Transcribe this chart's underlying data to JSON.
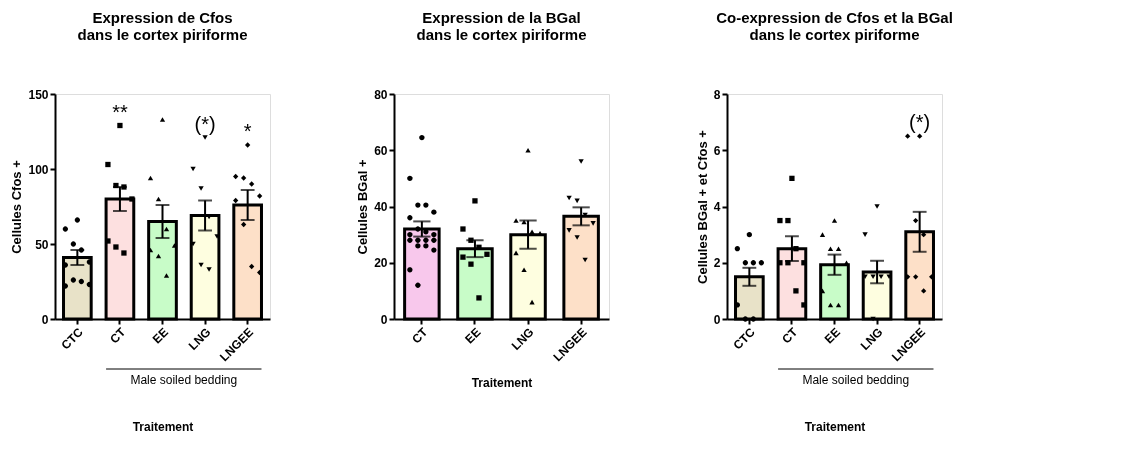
{
  "chart_data": [
    {
      "type": "bar",
      "title": "Expression de Cfos\ndans le cortex piriforme",
      "xlabel": "Traitement",
      "ylabel": "Cellules Cfos +",
      "categories": [
        "CTC",
        "CT",
        "EE",
        "LNG",
        "LNGEE"
      ],
      "ylim": [
        0,
        150
      ],
      "yticks": [
        0,
        50,
        100,
        150
      ],
      "grid": false,
      "legend": false,
      "series": [
        {
          "type": "bar",
          "values": [
            41,
            80,
            65,
            69,
            76
          ],
          "colors": [
            "#e8e2c8",
            "#fde0e0",
            "#c8fcc8",
            "#fefee0",
            "#fde0c8"
          ],
          "errors": [
            5,
            8,
            11,
            10,
            10
          ]
        },
        {
          "type": "scatter",
          "x": [
            "CTC",
            "CTC",
            "CTC",
            "CTC",
            "CTC",
            "CTC",
            "CTC",
            "CTC",
            "CTC",
            "CTC"
          ],
          "values": [
            66,
            60,
            50,
            46,
            38,
            36,
            26,
            25,
            23,
            22
          ],
          "marker": "circle",
          "color": "#000000"
        },
        {
          "type": "scatter",
          "x": [
            "CT",
            "CT",
            "CT",
            "CT",
            "CT",
            "CT",
            "CT",
            "CT"
          ],
          "values": [
            129,
            103,
            89,
            88,
            80,
            52,
            48,
            44
          ],
          "marker": "square",
          "color": "#000000"
        },
        {
          "type": "scatter",
          "x": [
            "EE",
            "EE",
            "EE",
            "EE",
            "EE",
            "EE",
            "EE",
            "EE"
          ],
          "values": [
            133,
            94,
            80,
            60,
            49,
            46,
            42,
            29
          ],
          "marker": "triangle",
          "color": "#000000"
        },
        {
          "type": "scatter",
          "x": [
            "LNG",
            "LNG",
            "LNG",
            "LNG",
            "LNG",
            "LNG",
            "LNG",
            "LNG"
          ],
          "values": [
            121,
            100,
            87,
            68,
            55,
            50,
            36,
            33
          ],
          "marker": "triangle-down",
          "color": "#000000"
        },
        {
          "type": "scatter",
          "x": [
            "LNGEE",
            "LNGEE",
            "LNGEE",
            "LNGEE",
            "LNGEE",
            "LNGEE",
            "LNGEE",
            "LNGEE",
            "LNGEE"
          ],
          "values": [
            116,
            95,
            94,
            90,
            82,
            79,
            63,
            35,
            31
          ],
          "marker": "diamond",
          "color": "#000000"
        }
      ],
      "annotations": [
        {
          "text": "**",
          "x": "CT",
          "y": 129
        },
        {
          "text": "(*)",
          "x": "LNG",
          "y": 121
        },
        {
          "text": "*",
          "x": "LNGEE",
          "y": 116
        },
        "Male soiled bedding"
      ]
    },
    {
      "type": "bar",
      "title": "Expression de la BGal\ndans le cortex piriforme",
      "xlabel": "Traitement",
      "ylabel": "Cellules BGal +",
      "categories": [
        "CT",
        "EE",
        "LNG",
        "LNGEE"
      ],
      "ylim": [
        0,
        80
      ],
      "yticks": [
        0,
        20,
        40,
        60,
        80
      ],
      "grid": false,
      "legend": false,
      "series": [
        {
          "type": "bar",
          "values": [
            32,
            25,
            30,
            36.5
          ],
          "colors": [
            "#f8c8ec",
            "#c8fcc8",
            "#fefee0",
            "#fde0c8"
          ],
          "errors": [
            2.7,
            3,
            5,
            3.2
          ]
        },
        {
          "type": "scatter",
          "x": [
            "CT",
            "CT",
            "CT",
            "CT",
            "CT",
            "CT",
            "CT",
            "CT",
            "CT",
            "CT",
            "CT",
            "CT",
            "CT",
            "CT",
            "CT",
            "CT",
            "CT",
            "CT",
            "CT"
          ],
          "values": [
            64.5,
            50,
            40.5,
            40.5,
            38,
            36,
            32,
            31,
            30,
            30,
            28,
            28,
            28,
            28,
            26,
            26,
            24.5,
            17.5,
            12
          ],
          "marker": "circle",
          "color": "#000000"
        },
        {
          "type": "scatter",
          "x": [
            "EE",
            "EE",
            "EE",
            "EE",
            "EE",
            "EE",
            "EE",
            "EE"
          ],
          "values": [
            42,
            32,
            28,
            25.5,
            23,
            22,
            19.5,
            7.5
          ],
          "marker": "square",
          "color": "#000000"
        },
        {
          "type": "scatter",
          "x": [
            "LNG",
            "LNG",
            "LNG",
            "LNG",
            "LNG",
            "LNG",
            "LNG",
            "LNG"
          ],
          "values": [
            60,
            35,
            34.5,
            31,
            30.5,
            23.5,
            17.5,
            6
          ],
          "marker": "triangle",
          "color": "#000000"
        },
        {
          "type": "scatter",
          "x": [
            "LNGEE",
            "LNGEE",
            "LNGEE",
            "LNGEE",
            "LNGEE",
            "LNGEE",
            "LNGEE",
            "LNGEE"
          ],
          "values": [
            56,
            43,
            42,
            37,
            34,
            31.5,
            29,
            21
          ],
          "marker": "triangle-down",
          "color": "#000000"
        }
      ]
    },
    {
      "type": "bar",
      "title": "Co-expression de Cfos et la BGal\ndans le cortex piriforme",
      "xlabel": "Traitement",
      "ylabel": "Cellules BGal + et Cfos +",
      "categories": [
        "CTC",
        "CT",
        "EE",
        "LNG",
        "LNGEE"
      ],
      "ylim": [
        0,
        8
      ],
      "yticks": [
        0,
        2,
        4,
        6,
        8
      ],
      "grid": false,
      "legend": false,
      "series": [
        {
          "type": "bar",
          "values": [
            1.5,
            2.5,
            1.93,
            1.67,
            3.1
          ],
          "colors": [
            "#e8e2c8",
            "#fde0e0",
            "#c8fcc8",
            "#fefee0",
            "#fde0c8"
          ],
          "errors": [
            0.32,
            0.44,
            0.36,
            0.4,
            0.71
          ]
        },
        {
          "type": "scatter",
          "x": [
            "CTC",
            "CTC",
            "CTC",
            "CTC",
            "CTC",
            "CTC",
            "CTC",
            "CTC"
          ],
          "values": [
            3,
            2.5,
            2,
            2,
            2,
            0.5,
            0,
            0
          ],
          "marker": "circle",
          "color": "#000000"
        },
        {
          "type": "scatter",
          "x": [
            "CT",
            "CT",
            "CT",
            "CT",
            "CT",
            "CT",
            "CT",
            "CT",
            "CT"
          ],
          "values": [
            5,
            3.5,
            3.5,
            2.5,
            2,
            2,
            2,
            1,
            0.5
          ],
          "marker": "square",
          "color": "#000000"
        },
        {
          "type": "scatter",
          "x": [
            "EE",
            "EE",
            "EE",
            "EE",
            "EE",
            "EE",
            "EE",
            "EE"
          ],
          "values": [
            3.5,
            3,
            2.5,
            2.5,
            2,
            1,
            0.5,
            0.5
          ],
          "marker": "triangle",
          "color": "#000000"
        },
        {
          "type": "scatter",
          "x": [
            "LNG",
            "LNG",
            "LNG",
            "LNG",
            "LNG",
            "LNG",
            "LNG"
          ],
          "values": [
            4,
            3,
            1.5,
            1.5,
            1.5,
            1.5,
            0
          ],
          "marker": "triangle-down",
          "color": "#000000"
        },
        {
          "type": "scatter",
          "x": [
            "LNGEE",
            "LNGEE",
            "LNGEE",
            "LNGEE",
            "LNGEE",
            "LNGEE",
            "LNGEE",
            "LNGEE"
          ],
          "values": [
            6.5,
            6.5,
            3.5,
            3,
            1.5,
            1.5,
            1.5,
            1
          ],
          "marker": "diamond",
          "color": "#000000"
        }
      ],
      "annotations": [
        {
          "text": "(*)",
          "x": "LNGEE",
          "y": 6.5
        },
        "Male soiled bedding"
      ]
    }
  ]
}
